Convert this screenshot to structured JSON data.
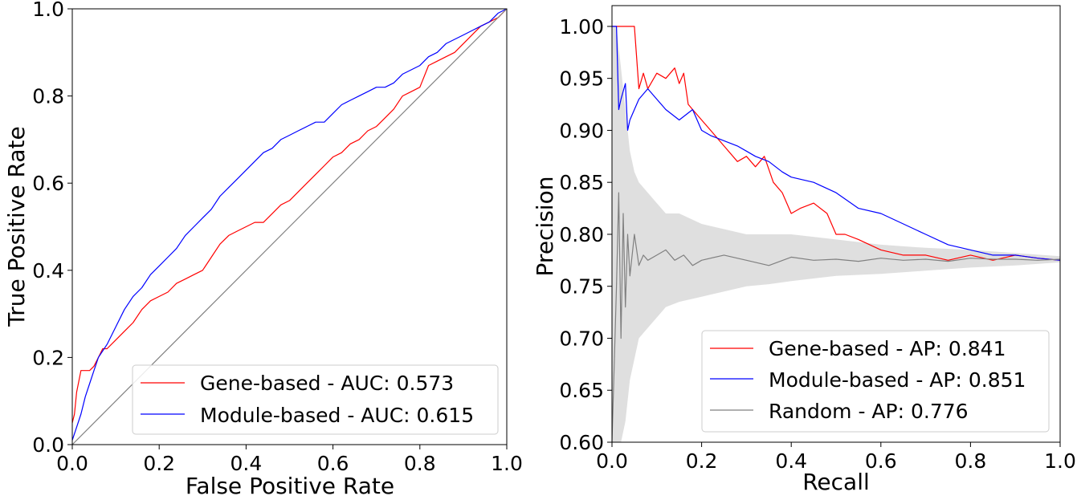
{
  "chart_data": [
    {
      "type": "line",
      "xlabel": "False Positive Rate",
      "ylabel": "True Positive Rate",
      "xlim": [
        0.0,
        1.0
      ],
      "ylim": [
        0.0,
        1.0
      ],
      "xticks": [
        "0.0",
        "0.2",
        "0.4",
        "0.6",
        "0.8",
        "1.0"
      ],
      "yticks": [
        "0.0",
        "0.2",
        "0.4",
        "0.6",
        "0.8",
        "1.0"
      ],
      "legend_position": "lower-right",
      "grid": false,
      "series": [
        {
          "name": "Gene-based - AUC: 0.573",
          "color": "#ff0000",
          "x": [
            0.0,
            0.005,
            0.01,
            0.02,
            0.03,
            0.04,
            0.05,
            0.06,
            0.07,
            0.08,
            0.1,
            0.12,
            0.14,
            0.16,
            0.18,
            0.2,
            0.22,
            0.24,
            0.26,
            0.28,
            0.3,
            0.32,
            0.34,
            0.36,
            0.38,
            0.4,
            0.42,
            0.44,
            0.46,
            0.48,
            0.5,
            0.52,
            0.54,
            0.56,
            0.58,
            0.6,
            0.62,
            0.64,
            0.66,
            0.68,
            0.7,
            0.72,
            0.74,
            0.76,
            0.78,
            0.8,
            0.82,
            0.84,
            0.86,
            0.88,
            0.9,
            0.92,
            0.94,
            0.96,
            0.98,
            1.0
          ],
          "y": [
            0.05,
            0.07,
            0.12,
            0.17,
            0.17,
            0.17,
            0.18,
            0.2,
            0.22,
            0.22,
            0.24,
            0.26,
            0.28,
            0.31,
            0.33,
            0.34,
            0.35,
            0.37,
            0.38,
            0.39,
            0.4,
            0.43,
            0.46,
            0.48,
            0.49,
            0.5,
            0.51,
            0.51,
            0.53,
            0.55,
            0.56,
            0.58,
            0.6,
            0.62,
            0.64,
            0.66,
            0.67,
            0.69,
            0.7,
            0.72,
            0.73,
            0.75,
            0.77,
            0.8,
            0.81,
            0.82,
            0.87,
            0.88,
            0.89,
            0.9,
            0.92,
            0.94,
            0.96,
            0.97,
            0.98,
            1.0
          ]
        },
        {
          "name": "Module-based - AUC: 0.615",
          "color": "#0000ff",
          "x": [
            0.0,
            0.01,
            0.02,
            0.03,
            0.04,
            0.05,
            0.06,
            0.08,
            0.1,
            0.12,
            0.14,
            0.16,
            0.18,
            0.2,
            0.22,
            0.24,
            0.26,
            0.28,
            0.3,
            0.32,
            0.34,
            0.36,
            0.38,
            0.4,
            0.42,
            0.44,
            0.46,
            0.48,
            0.5,
            0.52,
            0.54,
            0.56,
            0.58,
            0.6,
            0.62,
            0.64,
            0.66,
            0.68,
            0.7,
            0.72,
            0.74,
            0.76,
            0.78,
            0.8,
            0.82,
            0.84,
            0.86,
            0.88,
            0.9,
            0.92,
            0.94,
            0.96,
            0.98,
            1.0
          ],
          "y": [
            0.01,
            0.04,
            0.07,
            0.11,
            0.14,
            0.17,
            0.2,
            0.23,
            0.27,
            0.31,
            0.34,
            0.36,
            0.39,
            0.41,
            0.43,
            0.45,
            0.48,
            0.5,
            0.52,
            0.54,
            0.57,
            0.59,
            0.61,
            0.63,
            0.65,
            0.67,
            0.68,
            0.7,
            0.71,
            0.72,
            0.73,
            0.74,
            0.74,
            0.76,
            0.78,
            0.79,
            0.8,
            0.81,
            0.82,
            0.82,
            0.83,
            0.85,
            0.86,
            0.87,
            0.89,
            0.9,
            0.92,
            0.93,
            0.94,
            0.95,
            0.96,
            0.97,
            0.99,
            1.0
          ]
        },
        {
          "name": "",
          "color": "#808080",
          "x": [
            0.0,
            1.0
          ],
          "y": [
            0.0,
            1.0
          ]
        }
      ]
    },
    {
      "type": "line",
      "xlabel": "Recall",
      "ylabel": "Precision",
      "xlim": [
        0.0,
        1.0
      ],
      "ylim": [
        0.6,
        1.02
      ],
      "xticks": [
        "0.0",
        "0.2",
        "0.4",
        "0.6",
        "0.8",
        "1.0"
      ],
      "yticks": [
        "0.60",
        "0.65",
        "0.70",
        "0.75",
        "0.80",
        "0.85",
        "0.90",
        "0.95",
        "1.00"
      ],
      "legend_position": "lower-right",
      "grid": false,
      "series": [
        {
          "name": "Gene-based - AP: 0.841",
          "color": "#ff0000",
          "x": [
            0.0,
            0.02,
            0.05,
            0.06,
            0.07,
            0.08,
            0.1,
            0.12,
            0.14,
            0.15,
            0.16,
            0.17,
            0.18,
            0.2,
            0.22,
            0.25,
            0.28,
            0.3,
            0.32,
            0.34,
            0.36,
            0.38,
            0.4,
            0.42,
            0.45,
            0.48,
            0.5,
            0.52,
            0.55,
            0.6,
            0.65,
            0.7,
            0.75,
            0.8,
            0.85,
            0.9,
            0.95,
            1.0
          ],
          "y": [
            1.0,
            1.0,
            1.0,
            0.94,
            0.955,
            0.94,
            0.955,
            0.95,
            0.96,
            0.945,
            0.955,
            0.925,
            0.92,
            0.91,
            0.9,
            0.885,
            0.87,
            0.875,
            0.865,
            0.875,
            0.85,
            0.84,
            0.82,
            0.825,
            0.83,
            0.82,
            0.8,
            0.8,
            0.795,
            0.785,
            0.78,
            0.78,
            0.775,
            0.78,
            0.775,
            0.78,
            0.777,
            0.775
          ]
        },
        {
          "name": "Module-based - AP: 0.851",
          "color": "#0000ff",
          "x": [
            0.0,
            0.01,
            0.015,
            0.02,
            0.03,
            0.035,
            0.04,
            0.05,
            0.06,
            0.08,
            0.1,
            0.12,
            0.15,
            0.18,
            0.2,
            0.22,
            0.25,
            0.28,
            0.3,
            0.32,
            0.35,
            0.38,
            0.4,
            0.45,
            0.5,
            0.55,
            0.6,
            0.65,
            0.7,
            0.75,
            0.8,
            0.85,
            0.9,
            0.95,
            1.0
          ],
          "y": [
            1.0,
            1.0,
            0.92,
            0.93,
            0.945,
            0.9,
            0.91,
            0.92,
            0.93,
            0.94,
            0.93,
            0.92,
            0.91,
            0.92,
            0.9,
            0.895,
            0.89,
            0.885,
            0.88,
            0.875,
            0.87,
            0.86,
            0.855,
            0.85,
            0.84,
            0.825,
            0.82,
            0.81,
            0.8,
            0.79,
            0.785,
            0.78,
            0.78,
            0.777,
            0.775
          ]
        },
        {
          "name": "Random - AP: 0.776",
          "color": "#808080",
          "x": [
            0.0,
            0.01,
            0.015,
            0.02,
            0.025,
            0.03,
            0.035,
            0.04,
            0.05,
            0.06,
            0.07,
            0.08,
            0.1,
            0.12,
            0.14,
            0.16,
            0.18,
            0.2,
            0.25,
            0.3,
            0.35,
            0.4,
            0.45,
            0.5,
            0.55,
            0.6,
            0.65,
            0.7,
            0.75,
            0.8,
            0.85,
            0.9,
            0.95,
            1.0
          ],
          "y": [
            0.6,
            0.75,
            0.84,
            0.7,
            0.82,
            0.73,
            0.8,
            0.76,
            0.8,
            0.77,
            0.78,
            0.775,
            0.78,
            0.785,
            0.775,
            0.78,
            0.77,
            0.775,
            0.78,
            0.775,
            0.77,
            0.778,
            0.775,
            0.776,
            0.774,
            0.777,
            0.775,
            0.776,
            0.774,
            0.777,
            0.776,
            0.776,
            0.775,
            0.776
          ]
        }
      ],
      "band": {
        "color": "#d9d9d9",
        "x": [
          0.0,
          0.01,
          0.02,
          0.03,
          0.04,
          0.05,
          0.06,
          0.08,
          0.1,
          0.12,
          0.15,
          0.2,
          0.25,
          0.3,
          0.35,
          0.4,
          0.5,
          0.6,
          0.7,
          0.8,
          0.9,
          1.0
        ],
        "upper": [
          1.0,
          1.0,
          0.96,
          0.92,
          0.88,
          0.86,
          0.85,
          0.84,
          0.83,
          0.82,
          0.82,
          0.81,
          0.805,
          0.8,
          0.8,
          0.8,
          0.795,
          0.79,
          0.787,
          0.785,
          0.782,
          0.779
        ],
        "lower": [
          0.6,
          0.6,
          0.6,
          0.62,
          0.66,
          0.68,
          0.7,
          0.71,
          0.72,
          0.73,
          0.735,
          0.74,
          0.745,
          0.75,
          0.752,
          0.755,
          0.76,
          0.762,
          0.765,
          0.768,
          0.77,
          0.773
        ]
      }
    }
  ]
}
